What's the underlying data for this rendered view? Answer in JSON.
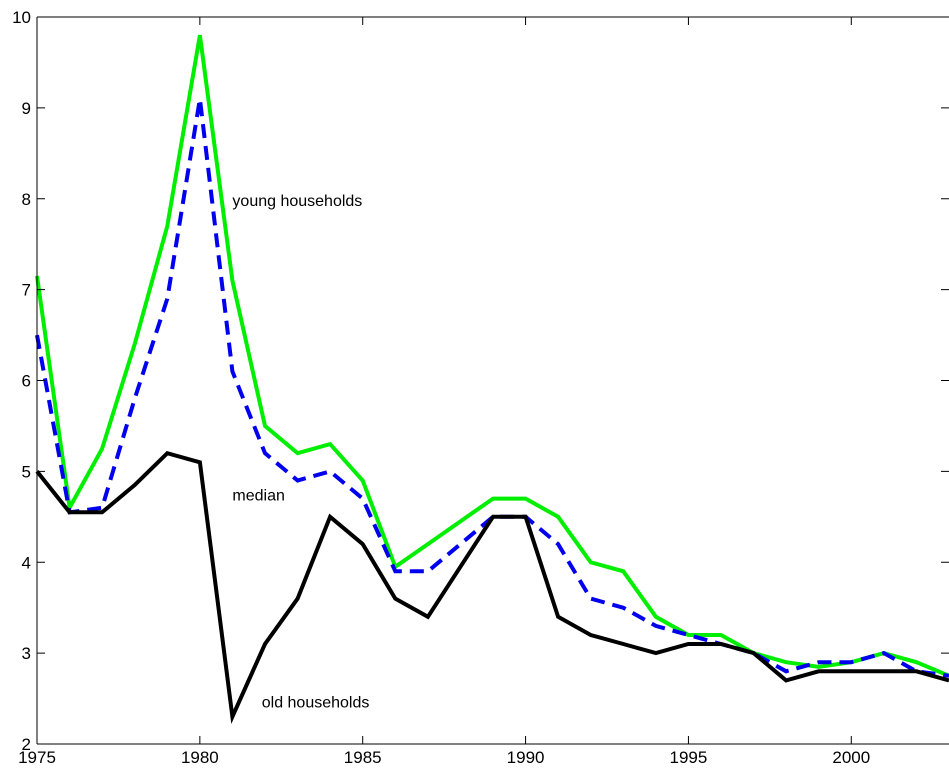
{
  "chart_data": {
    "type": "line",
    "title": "",
    "xlabel": "",
    "ylabel": "",
    "xlim": [
      1975,
      2003
    ],
    "ylim": [
      2,
      10
    ],
    "grid": false,
    "x_ticks": [
      1975,
      1980,
      1985,
      1990,
      1995,
      2000
    ],
    "y_ticks": [
      2,
      3,
      4,
      5,
      6,
      7,
      8,
      9,
      10
    ],
    "x": [
      1975,
      1976,
      1977,
      1978,
      1979,
      1980,
      1981,
      1982,
      1983,
      1984,
      1985,
      1986,
      1987,
      1988,
      1989,
      1990,
      1991,
      1992,
      1993,
      1994,
      1995,
      1996,
      1997,
      1998,
      1999,
      2000,
      2001,
      2002,
      2003
    ],
    "series": [
      {
        "name": "young households",
        "color": "#00ee00",
        "style": "solid",
        "values": [
          7.15,
          4.6,
          5.25,
          6.4,
          7.7,
          9.8,
          7.1,
          5.5,
          5.2,
          5.3,
          4.9,
          3.95,
          4.2,
          4.45,
          4.7,
          4.7,
          4.5,
          4.0,
          3.9,
          3.4,
          3.2,
          3.2,
          3.0,
          2.9,
          2.85,
          2.9,
          3.0,
          2.9,
          2.75
        ]
      },
      {
        "name": "median",
        "color": "#0000ee",
        "style": "dashed",
        "values": [
          6.5,
          4.55,
          4.6,
          5.8,
          6.9,
          9.1,
          6.1,
          5.2,
          4.9,
          5.0,
          4.7,
          3.9,
          3.9,
          4.2,
          4.5,
          4.5,
          4.2,
          3.6,
          3.5,
          3.3,
          3.2,
          3.1,
          3.0,
          2.8,
          2.9,
          2.9,
          3.0,
          2.8,
          2.75
        ]
      },
      {
        "name": "old households",
        "color": "#000000",
        "style": "solid",
        "values": [
          5.0,
          4.55,
          4.55,
          4.85,
          5.2,
          5.1,
          2.3,
          3.1,
          3.6,
          4.5,
          4.2,
          3.6,
          3.4,
          3.95,
          4.5,
          4.5,
          3.4,
          3.2,
          3.1,
          3.0,
          3.1,
          3.1,
          3.0,
          2.7,
          2.8,
          2.8,
          2.8,
          2.8,
          2.7
        ]
      }
    ],
    "annotations": [
      {
        "text": "young households",
        "x": 1981.0,
        "y": 7.92
      },
      {
        "text": "median",
        "x": 1981.0,
        "y": 4.68
      },
      {
        "text": "old households",
        "x": 1981.9,
        "y": 2.4
      }
    ]
  }
}
